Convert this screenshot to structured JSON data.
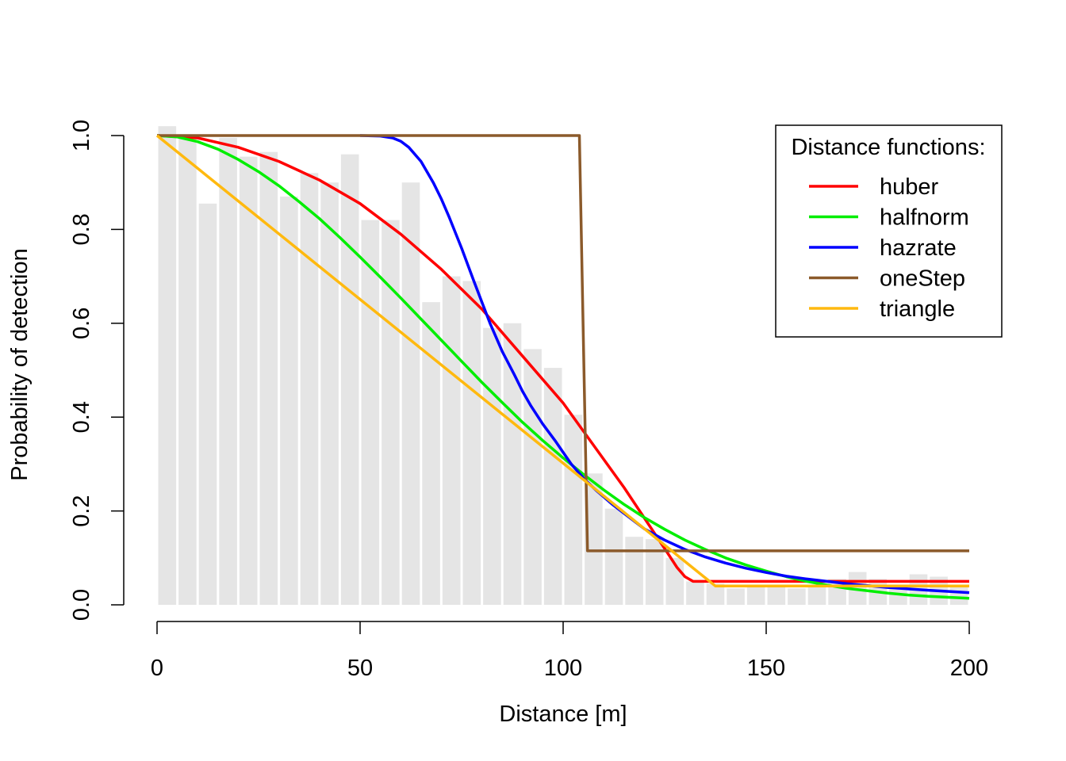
{
  "chart_data": {
    "type": "line",
    "title": "",
    "xlabel": "Distance [m]",
    "ylabel": "Probability of detection",
    "xlim": [
      0,
      200
    ],
    "ylim": [
      0,
      1
    ],
    "x_ticks": [
      0,
      50,
      100,
      150,
      200
    ],
    "y_ticks": [
      0.0,
      0.2,
      0.4,
      0.6,
      0.8,
      1.0
    ],
    "y_tick_labels": [
      "0.0",
      "0.2",
      "0.4",
      "0.6",
      "0.8",
      "1.0"
    ],
    "histogram": {
      "bin_width": 5,
      "bin_starts": [
        0,
        5,
        10,
        15,
        20,
        25,
        30,
        35,
        40,
        45,
        50,
        55,
        60,
        65,
        70,
        75,
        80,
        85,
        90,
        95,
        100,
        105,
        110,
        115,
        120,
        125,
        130,
        135,
        140,
        145,
        150,
        155,
        160,
        165,
        170,
        175,
        180,
        185,
        190,
        195
      ],
      "heights": [
        1.02,
        1.0,
        0.855,
        0.995,
        0.955,
        0.965,
        0.87,
        0.92,
        0.9,
        0.96,
        0.82,
        0.82,
        0.9,
        0.645,
        0.7,
        0.69,
        0.59,
        0.6,
        0.545,
        0.505,
        0.405,
        0.28,
        0.205,
        0.145,
        0.14,
        0.1,
        0.05,
        0.045,
        0.035,
        0.04,
        0.04,
        0.035,
        0.04,
        0.055,
        0.07,
        0.055,
        0.04,
        0.065,
        0.06,
        0.04
      ]
    },
    "legend": {
      "title": "Distance functions:",
      "position": "top-right"
    },
    "series": [
      {
        "name": "huber",
        "color": "#ff0000",
        "x": [
          0,
          10,
          20,
          30,
          40,
          50,
          60,
          70,
          80,
          90,
          100,
          105,
          110,
          115,
          120,
          125,
          128,
          130,
          132,
          140,
          150,
          160,
          170,
          180,
          190,
          200
        ],
        "y": [
          1.0,
          0.995,
          0.975,
          0.945,
          0.905,
          0.855,
          0.79,
          0.715,
          0.63,
          0.53,
          0.43,
          0.37,
          0.31,
          0.25,
          0.185,
          0.12,
          0.08,
          0.06,
          0.05,
          0.05,
          0.05,
          0.05,
          0.05,
          0.05,
          0.05,
          0.05
        ]
      },
      {
        "name": "halfnorm",
        "color": "#00ee00",
        "x": [
          0,
          5,
          10,
          15,
          20,
          25,
          30,
          35,
          40,
          45,
          50,
          55,
          60,
          65,
          70,
          75,
          80,
          85,
          90,
          95,
          100,
          105,
          110,
          115,
          120,
          125,
          130,
          135,
          140,
          145,
          150,
          155,
          160,
          165,
          170,
          175,
          180,
          185,
          190,
          195,
          200
        ],
        "y": [
          1.0,
          0.997,
          0.987,
          0.971,
          0.949,
          0.923,
          0.893,
          0.859,
          0.823,
          0.783,
          0.741,
          0.698,
          0.654,
          0.609,
          0.564,
          0.519,
          0.474,
          0.431,
          0.389,
          0.35,
          0.313,
          0.278,
          0.245,
          0.214,
          0.186,
          0.161,
          0.138,
          0.118,
          0.1,
          0.085,
          0.072,
          0.06,
          0.05,
          0.042,
          0.035,
          0.03,
          0.025,
          0.021,
          0.018,
          0.016,
          0.014
        ]
      },
      {
        "name": "hazrate",
        "color": "#0000ff",
        "x": [
          50,
          55,
          58,
          60,
          62,
          65,
          68,
          70,
          72,
          75,
          78,
          80,
          82,
          85,
          88,
          90,
          92,
          95,
          98,
          100,
          102,
          105,
          108,
          110,
          112,
          115,
          118,
          120,
          125,
          130,
          135,
          140,
          145,
          150,
          155,
          160,
          170,
          180,
          190,
          200
        ],
        "y": [
          1.0,
          0.999,
          0.995,
          0.988,
          0.975,
          0.945,
          0.9,
          0.865,
          0.825,
          0.76,
          0.69,
          0.645,
          0.6,
          0.54,
          0.49,
          0.455,
          0.425,
          0.385,
          0.35,
          0.325,
          0.3,
          0.27,
          0.245,
          0.23,
          0.215,
          0.195,
          0.175,
          0.162,
          0.138,
          0.118,
          0.102,
          0.089,
          0.078,
          0.069,
          0.061,
          0.055,
          0.045,
          0.037,
          0.031,
          0.026
        ]
      },
      {
        "name": "oneStep",
        "color": "#8b5a2b",
        "x": [
          0,
          104,
          106,
          106.5,
          200
        ],
        "y": [
          1.0,
          1.0,
          0.115,
          0.115,
          0.115
        ]
      },
      {
        "name": "triangle",
        "color": "#ffb90f",
        "x": [
          0,
          137.5,
          200
        ],
        "y": [
          1.0,
          0.04,
          0.04
        ]
      }
    ]
  }
}
